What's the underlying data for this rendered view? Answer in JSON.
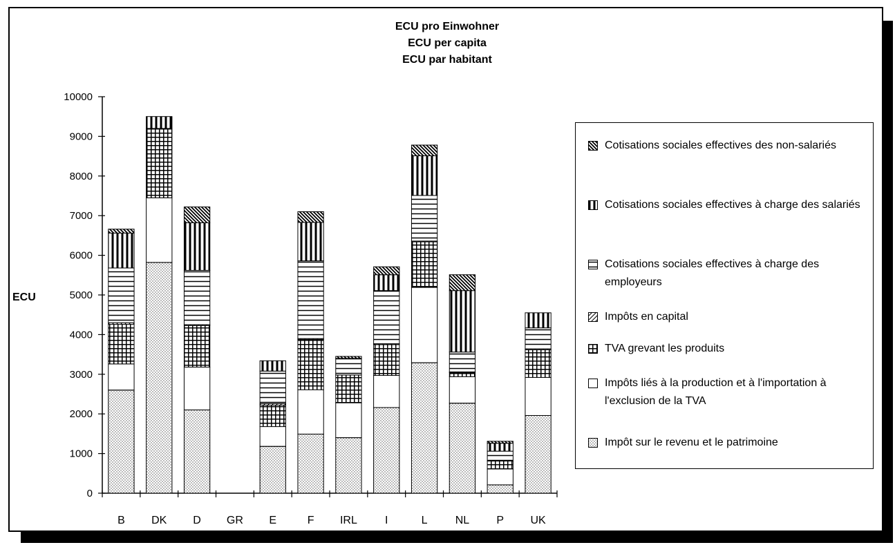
{
  "chart_data": {
    "type": "bar",
    "stacked": true,
    "title": [
      "ECU pro Einwohner",
      "ECU per capita",
      "ECU par habitant"
    ],
    "ylabel": "ECU",
    "xlabel": "",
    "ylim": [
      0,
      10000
    ],
    "yticks": [
      "0",
      "1000",
      "2000",
      "3000",
      "4000",
      "5000",
      "6000",
      "7000",
      "8000",
      "9000",
      "10000"
    ],
    "categories": [
      "B",
      "DK",
      "D",
      "GR",
      "E",
      "F",
      "IRL",
      "I",
      "L",
      "NL",
      "P",
      "UK"
    ],
    "grid": false,
    "legend_position": "right",
    "series": [
      {
        "name": "Impôt sur le revenu et le patrimoine",
        "pattern": "dots",
        "values": [
          2600,
          5820,
          2100,
          0,
          1180,
          1490,
          1400,
          2160,
          3290,
          2270,
          210,
          1960
        ]
      },
      {
        "name": "Impôts liés à la production et à l'importation à l'exclusion de la TVA",
        "pattern": "blank",
        "values": [
          660,
          1630,
          1080,
          0,
          500,
          1120,
          880,
          810,
          1900,
          670,
          400,
          960
        ]
      },
      {
        "name": "TVA grevant les produits",
        "pattern": "grid",
        "values": [
          1000,
          1750,
          1050,
          0,
          540,
          1270,
          700,
          780,
          1150,
          100,
          200,
          700
        ]
      },
      {
        "name": "Impôts en capital",
        "pattern": "diagonal",
        "values": [
          40,
          0,
          20,
          0,
          40,
          20,
          0,
          20,
          20,
          20,
          0,
          20
        ]
      },
      {
        "name": "Cotisations sociales effectives à charge des employeurs",
        "pattern": "horizontal",
        "values": [
          1380,
          0,
          1370,
          0,
          820,
          1960,
          420,
          1340,
          1150,
          500,
          250,
          530
        ]
      },
      {
        "name": "Cotisations sociales effectives à charge des salariés",
        "pattern": "vertical",
        "values": [
          880,
          300,
          1200,
          0,
          260,
          970,
          0,
          400,
          1000,
          1550,
          200,
          380
        ]
      },
      {
        "name": "Cotisations sociales effectives des non-salariés",
        "pattern": "backslash",
        "values": [
          100,
          0,
          400,
          0,
          0,
          270,
          50,
          200,
          270,
          400,
          50,
          0
        ]
      }
    ]
  }
}
